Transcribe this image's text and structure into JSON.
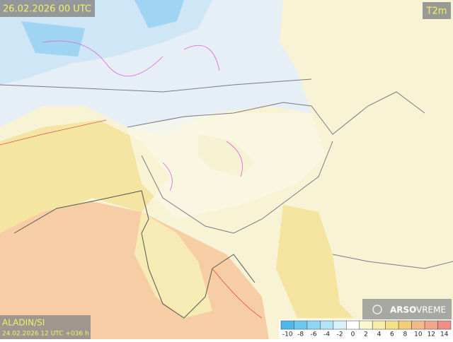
{
  "header": {
    "valid_time": "26.02.2026 00 UTC",
    "parameter": "T2m"
  },
  "model": {
    "name": "ALADIN/SI",
    "run": "24.02.2026 12 UTC +036 h"
  },
  "logo": {
    "brand": "ARSO",
    "product": "VREME"
  },
  "colorbar": {
    "ticks": [
      -10,
      -8,
      -6,
      -4,
      -2,
      0,
      2,
      4,
      6,
      8,
      10,
      12,
      14
    ],
    "colors": [
      "#4fb8e8",
      "#6cc8ee",
      "#8ed6f2",
      "#b2e4f6",
      "#d6f1fa",
      "#ffffff",
      "#fbf7cf",
      "#f8eda8",
      "#f5e088",
      "#f4cd78",
      "#f3b988",
      "#f1a58a",
      "#ef8d86"
    ]
  }
}
